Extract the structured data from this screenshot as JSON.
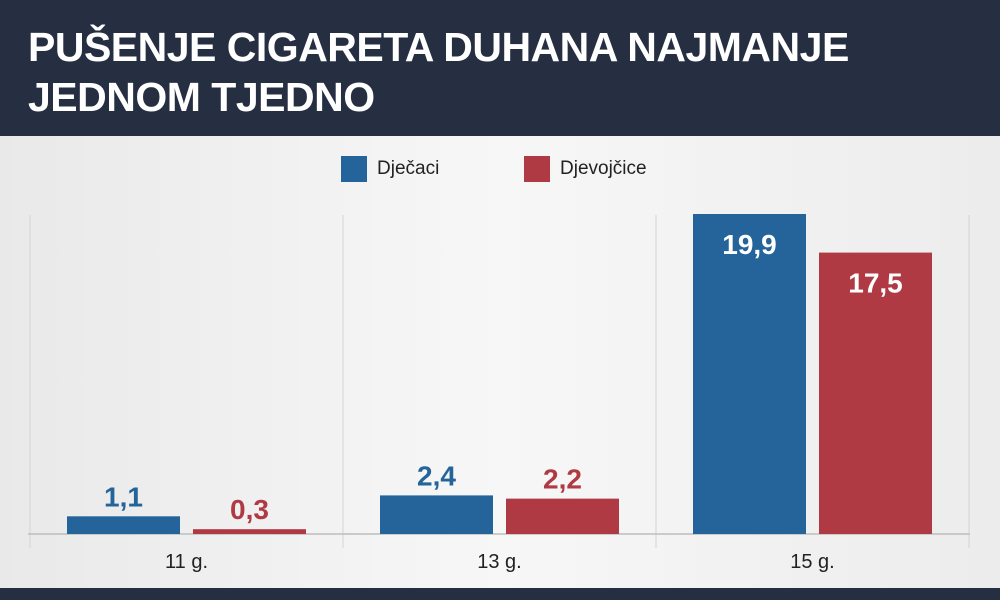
{
  "header": {
    "title_line1": "PUŠENJE CIGARETA DUHANA NAJMANJE",
    "title_line2": "JEDNOM TJEDNO"
  },
  "colors": {
    "header_bg": "#262f42",
    "boys": "#24649b",
    "girls": "#b03a43"
  },
  "chart_data": {
    "type": "bar",
    "categories": [
      "11 g.",
      "13 g.",
      "15 g."
    ],
    "series": [
      {
        "name": "Dječaci",
        "values": [
          1.1,
          2.4,
          19.9
        ],
        "labels": [
          "1,1",
          "2,4",
          "19,9"
        ]
      },
      {
        "name": "Djevojčice",
        "values": [
          0.3,
          2.2,
          17.5
        ],
        "labels": [
          "0,3",
          "2,2",
          "17,5"
        ]
      }
    ],
    "ylim": [
      0,
      20
    ],
    "grid": false,
    "legend_position": "top-center"
  }
}
